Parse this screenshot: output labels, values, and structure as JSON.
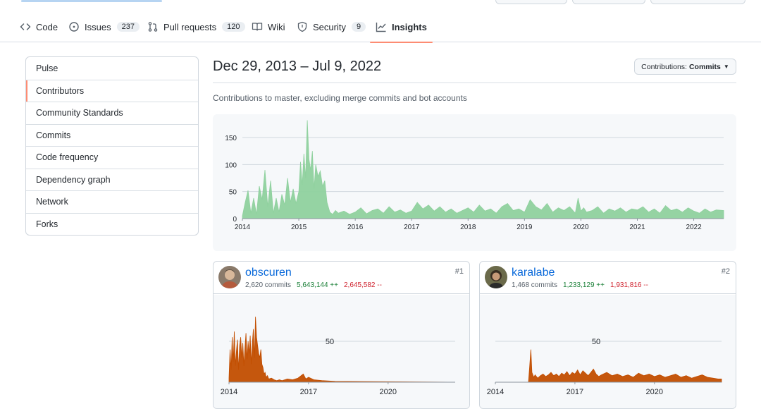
{
  "nav": {
    "tabs": [
      {
        "label": "Code",
        "icon": "code-icon"
      },
      {
        "label": "Issues",
        "count": "237",
        "icon": "issue-opened-icon"
      },
      {
        "label": "Pull requests",
        "count": "120",
        "icon": "git-pull-request-icon"
      },
      {
        "label": "Wiki",
        "icon": "book-icon"
      },
      {
        "label": "Security",
        "count": "9",
        "icon": "shield-icon"
      },
      {
        "label": "Insights",
        "icon": "graph-icon",
        "active": true
      }
    ]
  },
  "sidebar": {
    "items": [
      {
        "label": "Pulse"
      },
      {
        "label": "Contributors",
        "selected": true
      },
      {
        "label": "Community Standards"
      },
      {
        "label": "Commits"
      },
      {
        "label": "Code frequency"
      },
      {
        "label": "Dependency graph"
      },
      {
        "label": "Network"
      },
      {
        "label": "Forks"
      }
    ]
  },
  "main": {
    "date_range": "Dec 29, 2013 – Jul 9, 2022",
    "contributions_button": {
      "label": "Contributions:",
      "value": "Commits"
    },
    "subtitle": "Contributions to master, excluding merge commits and bot accounts"
  },
  "chart_data": [
    {
      "type": "area",
      "title": "",
      "x_tick_labels": [
        "2014",
        "2015",
        "2016",
        "2017",
        "2018",
        "2019",
        "2020",
        "2021",
        "2022"
      ],
      "y_tick_labels": [
        "0",
        "50",
        "100",
        "150"
      ],
      "ylim": [
        0,
        180
      ],
      "xlim": [
        2014.0,
        2022.53
      ],
      "color": "#8fd19e",
      "grid": true,
      "x": [
        2014.0,
        2014.05,
        2014.1,
        2014.15,
        2014.2,
        2014.25,
        2014.3,
        2014.35,
        2014.4,
        2014.45,
        2014.5,
        2014.55,
        2014.6,
        2014.65,
        2014.7,
        2014.75,
        2014.8,
        2014.85,
        2014.9,
        2014.95,
        2015.0,
        2015.03,
        2015.06,
        2015.09,
        2015.12,
        2015.15,
        2015.18,
        2015.21,
        2015.24,
        2015.27,
        2015.3,
        2015.34,
        2015.38,
        2015.42,
        2015.46,
        2015.5,
        2015.55,
        2015.6,
        2015.65,
        2015.7,
        2015.8,
        2015.9,
        2016.0,
        2016.1,
        2016.2,
        2016.3,
        2016.4,
        2016.5,
        2016.6,
        2016.7,
        2016.8,
        2016.9,
        2017.0,
        2017.1,
        2017.2,
        2017.3,
        2017.4,
        2017.5,
        2017.6,
        2017.7,
        2017.8,
        2017.9,
        2018.0,
        2018.1,
        2018.2,
        2018.3,
        2018.4,
        2018.5,
        2018.6,
        2018.7,
        2018.8,
        2018.9,
        2019.0,
        2019.1,
        2019.2,
        2019.3,
        2019.4,
        2019.5,
        2019.6,
        2019.7,
        2019.8,
        2019.9,
        2019.95,
        2020.0,
        2020.05,
        2020.1,
        2020.2,
        2020.3,
        2020.4,
        2020.5,
        2020.6,
        2020.7,
        2020.8,
        2020.9,
        2021.0,
        2021.1,
        2021.2,
        2021.3,
        2021.4,
        2021.5,
        2021.6,
        2021.7,
        2021.8,
        2021.9,
        2022.0,
        2022.1,
        2022.2,
        2022.3,
        2022.4,
        2022.53
      ],
      "y": [
        5,
        30,
        52,
        10,
        38,
        8,
        60,
        35,
        90,
        22,
        70,
        10,
        38,
        12,
        45,
        25,
        75,
        30,
        55,
        28,
        50,
        105,
        62,
        120,
        75,
        182,
        110,
        90,
        125,
        55,
        100,
        78,
        88,
        60,
        70,
        30,
        12,
        8,
        15,
        10,
        14,
        8,
        12,
        20,
        9,
        15,
        18,
        10,
        22,
        12,
        16,
        10,
        14,
        30,
        18,
        25,
        14,
        22,
        12,
        18,
        10,
        15,
        20,
        12,
        25,
        14,
        18,
        10,
        22,
        28,
        15,
        18,
        12,
        35,
        22,
        16,
        28,
        12,
        20,
        15,
        22,
        10,
        38,
        14,
        20,
        12,
        15,
        22,
        10,
        18,
        14,
        20,
        12,
        18,
        16,
        22,
        12,
        18,
        10,
        24,
        15,
        18,
        12,
        20,
        14,
        10,
        18,
        12,
        16,
        15
      ]
    },
    {
      "type": "area",
      "title": "",
      "series_owner": "obscuren",
      "x_tick_labels": [
        "2014",
        "2017",
        "2020"
      ],
      "y_tick_labels": [
        "50"
      ],
      "ylim": [
        0,
        100
      ],
      "xlim": [
        2014.0,
        2022.53
      ],
      "color": "#c24e00",
      "x": [
        2014.0,
        2014.04,
        2014.08,
        2014.12,
        2014.16,
        2014.2,
        2014.24,
        2014.28,
        2014.32,
        2014.36,
        2014.4,
        2014.44,
        2014.48,
        2014.52,
        2014.56,
        2014.6,
        2014.64,
        2014.68,
        2014.72,
        2014.76,
        2014.8,
        2014.84,
        2014.88,
        2014.92,
        2014.96,
        2015.0,
        2015.04,
        2015.08,
        2015.12,
        2015.16,
        2015.2,
        2015.24,
        2015.28,
        2015.32,
        2015.36,
        2015.4,
        2015.45,
        2015.5,
        2015.6,
        2015.7,
        2015.8,
        2015.9,
        2016.0,
        2016.2,
        2016.4,
        2016.6,
        2016.8,
        2016.9,
        2017.0,
        2017.2,
        2017.5,
        2018.0,
        2022.53
      ],
      "y": [
        5,
        40,
        15,
        55,
        25,
        62,
        20,
        38,
        52,
        15,
        45,
        55,
        30,
        48,
        20,
        42,
        60,
        28,
        50,
        35,
        57,
        22,
        48,
        65,
        30,
        80,
        55,
        45,
        35,
        30,
        40,
        22,
        18,
        10,
        12,
        6,
        8,
        4,
        5,
        3,
        2,
        3,
        2,
        4,
        3,
        5,
        10,
        4,
        6,
        3,
        2,
        1,
        0
      ]
    },
    {
      "type": "area",
      "title": "",
      "series_owner": "karalabe",
      "x_tick_labels": [
        "2014",
        "2017",
        "2020"
      ],
      "y_tick_labels": [
        "50"
      ],
      "ylim": [
        0,
        100
      ],
      "xlim": [
        2014.0,
        2022.53
      ],
      "color": "#c24e00",
      "x": [
        2014.0,
        2015.25,
        2015.3,
        2015.34,
        2015.38,
        2015.45,
        2015.5,
        2015.6,
        2015.7,
        2015.8,
        2015.9,
        2016.0,
        2016.1,
        2016.2,
        2016.3,
        2016.4,
        2016.5,
        2016.6,
        2016.7,
        2016.8,
        2016.9,
        2017.0,
        2017.1,
        2017.2,
        2017.3,
        2017.4,
        2017.5,
        2017.6,
        2017.7,
        2017.8,
        2017.9,
        2018.0,
        2018.2,
        2018.4,
        2018.6,
        2018.8,
        2019.0,
        2019.2,
        2019.4,
        2019.6,
        2019.8,
        2020.0,
        2020.2,
        2020.4,
        2020.6,
        2020.8,
        2021.0,
        2021.2,
        2021.4,
        2021.6,
        2021.8,
        2022.0,
        2022.2,
        2022.4,
        2022.53
      ],
      "y": [
        0,
        0,
        22,
        40,
        12,
        6,
        9,
        5,
        8,
        10,
        7,
        9,
        12,
        8,
        10,
        7,
        11,
        9,
        13,
        8,
        12,
        10,
        15,
        9,
        14,
        11,
        8,
        12,
        16,
        10,
        7,
        9,
        12,
        8,
        10,
        7,
        9,
        6,
        11,
        8,
        10,
        7,
        9,
        6,
        8,
        10,
        6,
        8,
        5,
        7,
        9,
        6,
        5,
        4,
        4
      ]
    }
  ],
  "contributors": [
    {
      "rank": "#1",
      "username": "obscuren",
      "commits": "2,620 commits",
      "additions": "5,643,144 ++",
      "deletions": "2,645,582 --"
    },
    {
      "rank": "#2",
      "username": "karalabe",
      "commits": "1,468 commits",
      "additions": "1,233,129 ++",
      "deletions": "1,931,816 --"
    }
  ],
  "colors": {
    "link": "#0969da",
    "additions": "#1a7f37",
    "deletions": "#cf222e",
    "active_tab_underline": "#fd8c73",
    "main_chart_fill": "#8fd19e",
    "contributor_chart_fill": "#c24e00"
  }
}
